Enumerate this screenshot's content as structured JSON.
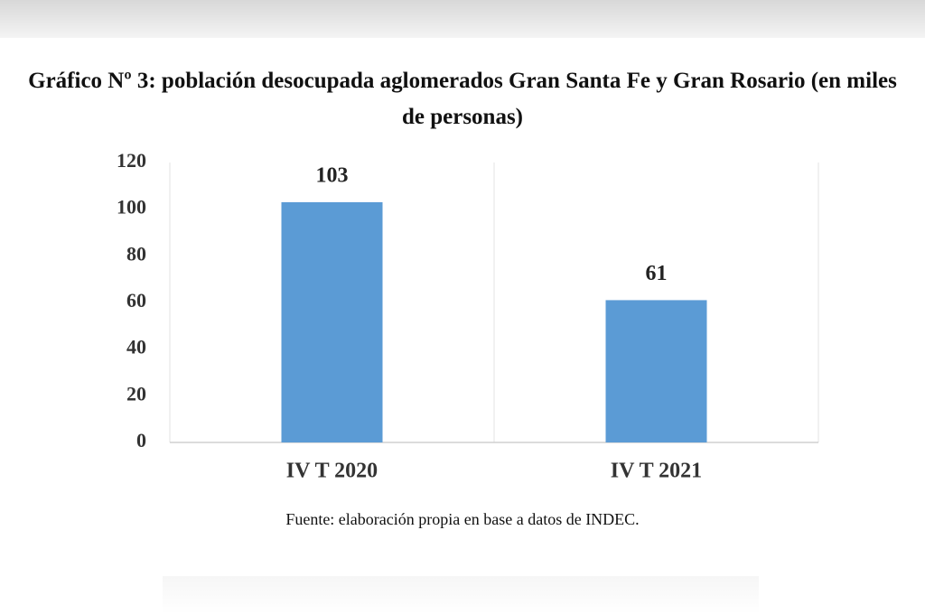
{
  "chart_data": {
    "type": "bar",
    "title": "Gráfico Nº 3: población desocupada aglomerados Gran Santa Fe y Gran Rosario (en miles de personas)",
    "categories": [
      "IV T 2020",
      "IV T 2021"
    ],
    "values": [
      103,
      61
    ],
    "color": "#5b9bd5",
    "ylim": [
      0,
      120
    ],
    "yticks": [
      0,
      20,
      40,
      60,
      80,
      100,
      120
    ],
    "source": "Fuente: elaboración propia en base a datos de INDEC."
  }
}
